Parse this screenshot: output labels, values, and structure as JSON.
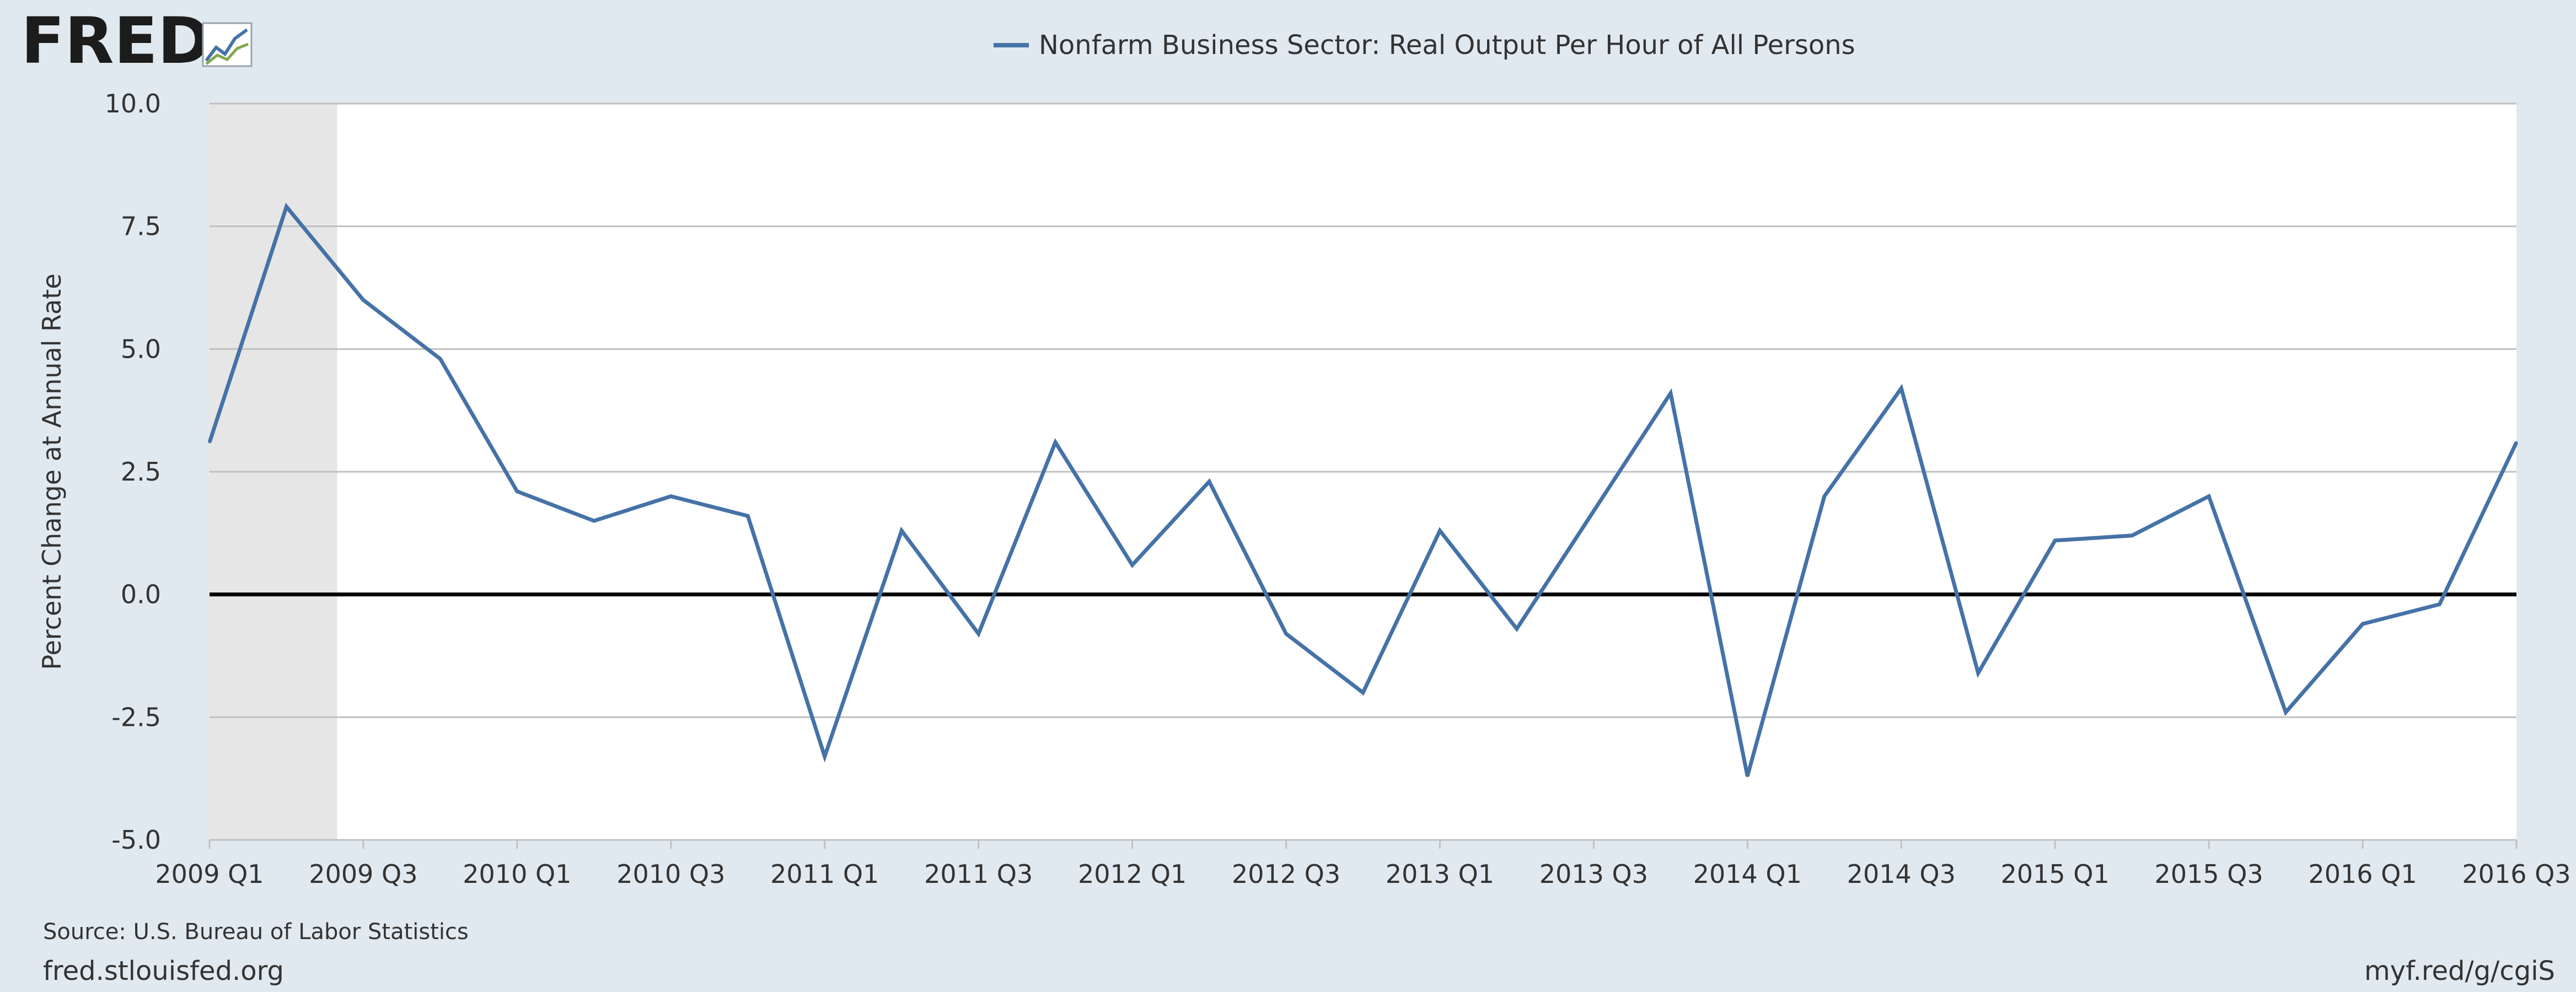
{
  "logo": {
    "text": "FRED",
    "icon": "fred-chart-logo-icon"
  },
  "legend": {
    "label": "Nonfarm Business Sector: Real Output Per Hour of All Persons"
  },
  "footer": {
    "source": "Source: U.S. Bureau of Labor Statistics",
    "site": "fred.stlouisfed.org",
    "short_url": "myf.red/g/cgiS"
  },
  "colors": {
    "background": "#e1e9f0",
    "plot_background": "#ffffff",
    "series": "#4572a7",
    "recession_shade": "#e6e6e6",
    "grid": "#c0c0c0",
    "zero_line": "#000000"
  },
  "chart_data": {
    "type": "line",
    "title": "",
    "xlabel": "",
    "ylabel": "Percent Change at Annual Rate",
    "ylim": [
      -5.0,
      10.0
    ],
    "yticks": [
      "10.0",
      "7.5",
      "5.0",
      "2.5",
      "0.0",
      "-2.5",
      "-5.0"
    ],
    "ytick_values": [
      10.0,
      7.5,
      5.0,
      2.5,
      0.0,
      -2.5,
      -5.0
    ],
    "xticks": [
      "2009 Q1",
      "2009 Q3",
      "2010 Q1",
      "2010 Q3",
      "2011 Q1",
      "2011 Q3",
      "2012 Q1",
      "2012 Q3",
      "2013 Q1",
      "2013 Q3",
      "2014 Q1",
      "2014 Q3",
      "2015 Q1",
      "2015 Q3",
      "2016 Q1",
      "2016 Q3"
    ],
    "grid": true,
    "legend_position": "top-center",
    "recession_shading": [
      {
        "start": "2009 Q1",
        "end": "2009 Q2"
      }
    ],
    "categories": [
      "2009 Q1",
      "2009 Q2",
      "2009 Q3",
      "2009 Q4",
      "2010 Q1",
      "2010 Q2",
      "2010 Q3",
      "2010 Q4",
      "2011 Q1",
      "2011 Q2",
      "2011 Q3",
      "2011 Q4",
      "2012 Q1",
      "2012 Q2",
      "2012 Q3",
      "2012 Q4",
      "2013 Q1",
      "2013 Q2",
      "2013 Q3",
      "2013 Q4",
      "2014 Q1",
      "2014 Q2",
      "2014 Q3",
      "2014 Q4",
      "2015 Q1",
      "2015 Q2",
      "2015 Q3",
      "2015 Q4",
      "2016 Q1",
      "2016 Q2",
      "2016 Q3"
    ],
    "series": [
      {
        "name": "Nonfarm Business Sector: Real Output Per Hour of All Persons",
        "values": [
          3.1,
          7.9,
          6.0,
          4.8,
          2.1,
          1.5,
          2.0,
          1.6,
          -3.3,
          1.3,
          -0.8,
          3.1,
          0.6,
          2.3,
          -0.8,
          -2.0,
          1.3,
          -0.7,
          1.7,
          4.1,
          -3.7,
          2.0,
          4.2,
          -1.6,
          1.1,
          1.2,
          2.0,
          -2.4,
          -0.6,
          -0.2,
          3.1
        ]
      }
    ]
  }
}
